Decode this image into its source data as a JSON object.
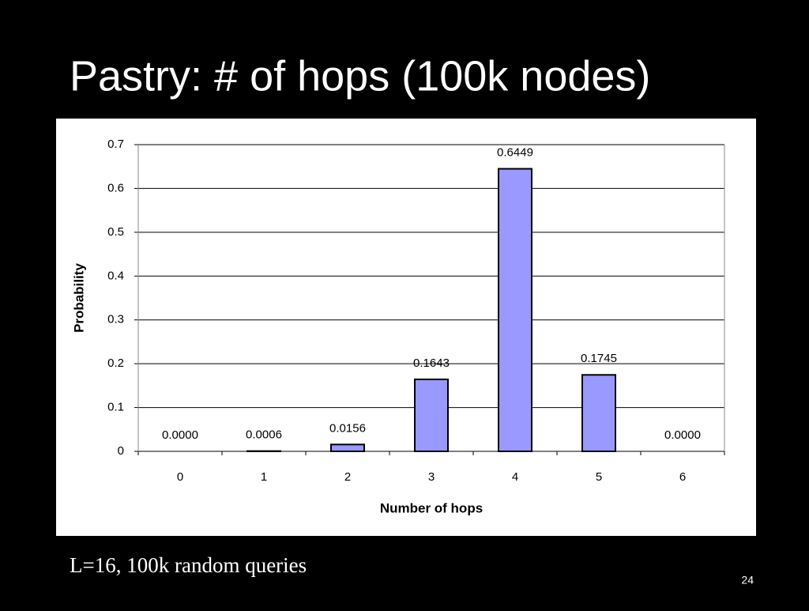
{
  "slide": {
    "title": "Pastry: # of hops (100k nodes)",
    "caption": "L=16, 100k random queries",
    "page_number": 24
  },
  "chart_data": {
    "type": "bar",
    "x_label": "Number of hops",
    "y_label": "Probability",
    "categories": [
      "0",
      "1",
      "2",
      "3",
      "4",
      "5",
      "6"
    ],
    "values": [
      0,
      0.0006,
      0.0156,
      0.1643,
      0.6449,
      0.1745,
      0
    ],
    "value_labels": [
      "0.0000",
      "0.0006",
      "0.0156",
      "0.1643",
      "0.6449",
      "0.1745",
      "0.0000"
    ],
    "color": "#9999ff",
    "ylim": [
      0,
      0.7
    ],
    "yticks": [
      0,
      0.1,
      0.2,
      0.3,
      0.4,
      0.5,
      0.6,
      0.7
    ],
    "grid": true
  }
}
